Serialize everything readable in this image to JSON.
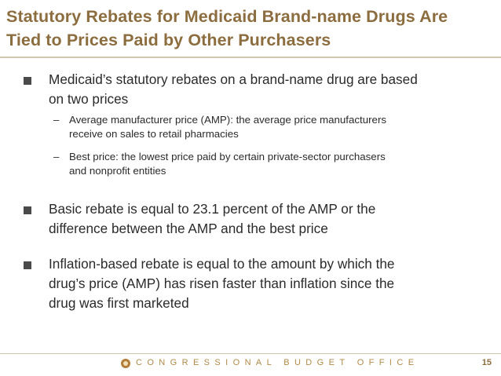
{
  "slide": {
    "title_line1": "Statutory Rebates for Medicaid Brand-name Drugs Are",
    "title_line2": "Tied to Prices Paid by Other Purchasers"
  },
  "bullets": [
    {
      "line1": "Medicaid’s statutory rebates on a brand-name drug are based",
      "line2": "on two prices",
      "subitems": [
        {
          "line1": "Average manufacturer price (AMP): the average price manufacturers",
          "line2": "receive on sales to retail pharmacies"
        },
        {
          "line1": "Best price: the lowest price paid by certain private-sector purchasers",
          "line2": "and nonprofit entities"
        }
      ]
    },
    {
      "line1": "Basic rebate is equal to 23.1 percent of the AMP or the",
      "line2": "difference between the AMP and the best price"
    },
    {
      "line1": "Inflation-based rebate is equal to the amount by which the",
      "line2": "drug’s price (AMP) has risen faster than inflation since the",
      "line3": "drug was first marketed"
    }
  ],
  "footer": {
    "logo_icon": "cbo-logo-icon",
    "org_name": "CONGRESSIONAL BUDGET OFFICE",
    "page_number": "15"
  },
  "colors": {
    "title": "#8c6d3f",
    "rule": "#cfc6ad",
    "body_text": "#2b2b2b",
    "footer_text": "#b08a4a"
  }
}
